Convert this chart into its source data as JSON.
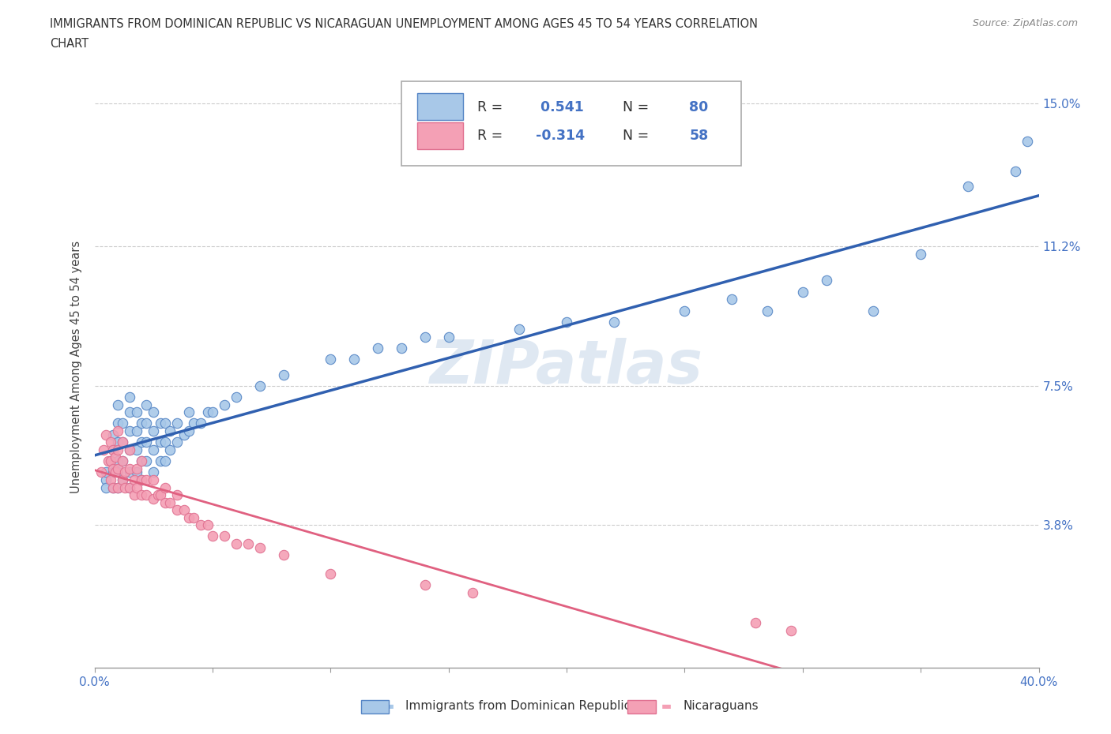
{
  "title_line1": "IMMIGRANTS FROM DOMINICAN REPUBLIC VS NICARAGUAN UNEMPLOYMENT AMONG AGES 45 TO 54 YEARS CORRELATION",
  "title_line2": "CHART",
  "source": "Source: ZipAtlas.com",
  "ylabel": "Unemployment Among Ages 45 to 54 years",
  "xlim": [
    0.0,
    0.4
  ],
  "ylim": [
    0.0,
    0.16
  ],
  "xticks": [
    0.0,
    0.05,
    0.1,
    0.15,
    0.2,
    0.25,
    0.3,
    0.35,
    0.4
  ],
  "xticklabels": [
    "0.0%",
    "",
    "",
    "",
    "",
    "",
    "",
    "",
    "40.0%"
  ],
  "ytick_gridlines": [
    0.038,
    0.075,
    0.112,
    0.15
  ],
  "yticklabels_right": [
    "3.8%",
    "7.5%",
    "11.2%",
    "15.0%"
  ],
  "grid_color": "#cccccc",
  "background_color": "#ffffff",
  "blue_fill": "#a8c8e8",
  "pink_fill": "#f4a0b5",
  "blue_edge": "#5585c5",
  "pink_edge": "#e07090",
  "blue_line_color": "#3060b0",
  "pink_line_color": "#e06080",
  "axis_label_color": "#4472c4",
  "R_blue": 0.541,
  "N_blue": 80,
  "R_pink": -0.314,
  "N_pink": 58,
  "watermark": "ZIPatlas",
  "legend_label_blue": "Immigrants from Dominican Republic",
  "legend_label_pink": "Nicaraguans",
  "blue_points": [
    [
      0.005,
      0.05
    ],
    [
      0.005,
      0.052
    ],
    [
      0.005,
      0.048
    ],
    [
      0.007,
      0.055
    ],
    [
      0.008,
      0.048
    ],
    [
      0.008,
      0.052
    ],
    [
      0.008,
      0.058
    ],
    [
      0.008,
      0.062
    ],
    [
      0.01,
      0.048
    ],
    [
      0.01,
      0.052
    ],
    [
      0.01,
      0.055
    ],
    [
      0.01,
      0.06
    ],
    [
      0.01,
      0.065
    ],
    [
      0.01,
      0.07
    ],
    [
      0.012,
      0.05
    ],
    [
      0.012,
      0.055
    ],
    [
      0.012,
      0.06
    ],
    [
      0.012,
      0.065
    ],
    [
      0.015,
      0.048
    ],
    [
      0.015,
      0.052
    ],
    [
      0.015,
      0.058
    ],
    [
      0.015,
      0.063
    ],
    [
      0.015,
      0.068
    ],
    [
      0.015,
      0.072
    ],
    [
      0.018,
      0.052
    ],
    [
      0.018,
      0.058
    ],
    [
      0.018,
      0.063
    ],
    [
      0.018,
      0.068
    ],
    [
      0.02,
      0.05
    ],
    [
      0.02,
      0.055
    ],
    [
      0.02,
      0.06
    ],
    [
      0.02,
      0.065
    ],
    [
      0.022,
      0.055
    ],
    [
      0.022,
      0.06
    ],
    [
      0.022,
      0.065
    ],
    [
      0.022,
      0.07
    ],
    [
      0.025,
      0.052
    ],
    [
      0.025,
      0.058
    ],
    [
      0.025,
      0.063
    ],
    [
      0.025,
      0.068
    ],
    [
      0.028,
      0.055
    ],
    [
      0.028,
      0.06
    ],
    [
      0.028,
      0.065
    ],
    [
      0.03,
      0.055
    ],
    [
      0.03,
      0.06
    ],
    [
      0.03,
      0.065
    ],
    [
      0.032,
      0.058
    ],
    [
      0.032,
      0.063
    ],
    [
      0.035,
      0.06
    ],
    [
      0.035,
      0.065
    ],
    [
      0.038,
      0.062
    ],
    [
      0.04,
      0.063
    ],
    [
      0.04,
      0.068
    ],
    [
      0.042,
      0.065
    ],
    [
      0.045,
      0.065
    ],
    [
      0.048,
      0.068
    ],
    [
      0.05,
      0.068
    ],
    [
      0.055,
      0.07
    ],
    [
      0.06,
      0.072
    ],
    [
      0.07,
      0.075
    ],
    [
      0.08,
      0.078
    ],
    [
      0.1,
      0.082
    ],
    [
      0.11,
      0.082
    ],
    [
      0.12,
      0.085
    ],
    [
      0.13,
      0.085
    ],
    [
      0.14,
      0.088
    ],
    [
      0.15,
      0.088
    ],
    [
      0.18,
      0.09
    ],
    [
      0.2,
      0.092
    ],
    [
      0.22,
      0.092
    ],
    [
      0.25,
      0.095
    ],
    [
      0.27,
      0.098
    ],
    [
      0.285,
      0.095
    ],
    [
      0.3,
      0.1
    ],
    [
      0.31,
      0.103
    ],
    [
      0.33,
      0.095
    ],
    [
      0.35,
      0.11
    ],
    [
      0.37,
      0.128
    ],
    [
      0.39,
      0.132
    ],
    [
      0.395,
      0.14
    ]
  ],
  "pink_points": [
    [
      0.003,
      0.052
    ],
    [
      0.004,
      0.058
    ],
    [
      0.005,
      0.062
    ],
    [
      0.006,
      0.055
    ],
    [
      0.007,
      0.05
    ],
    [
      0.007,
      0.055
    ],
    [
      0.007,
      0.06
    ],
    [
      0.008,
      0.048
    ],
    [
      0.008,
      0.053
    ],
    [
      0.008,
      0.058
    ],
    [
      0.009,
      0.052
    ],
    [
      0.009,
      0.056
    ],
    [
      0.01,
      0.048
    ],
    [
      0.01,
      0.053
    ],
    [
      0.01,
      0.058
    ],
    [
      0.01,
      0.063
    ],
    [
      0.012,
      0.05
    ],
    [
      0.012,
      0.055
    ],
    [
      0.012,
      0.06
    ],
    [
      0.013,
      0.048
    ],
    [
      0.013,
      0.052
    ],
    [
      0.015,
      0.048
    ],
    [
      0.015,
      0.053
    ],
    [
      0.015,
      0.058
    ],
    [
      0.017,
      0.046
    ],
    [
      0.017,
      0.05
    ],
    [
      0.018,
      0.048
    ],
    [
      0.018,
      0.053
    ],
    [
      0.02,
      0.046
    ],
    [
      0.02,
      0.05
    ],
    [
      0.02,
      0.055
    ],
    [
      0.022,
      0.046
    ],
    [
      0.022,
      0.05
    ],
    [
      0.025,
      0.045
    ],
    [
      0.025,
      0.05
    ],
    [
      0.027,
      0.046
    ],
    [
      0.028,
      0.046
    ],
    [
      0.03,
      0.044
    ],
    [
      0.03,
      0.048
    ],
    [
      0.032,
      0.044
    ],
    [
      0.035,
      0.042
    ],
    [
      0.035,
      0.046
    ],
    [
      0.038,
      0.042
    ],
    [
      0.04,
      0.04
    ],
    [
      0.042,
      0.04
    ],
    [
      0.045,
      0.038
    ],
    [
      0.048,
      0.038
    ],
    [
      0.05,
      0.035
    ],
    [
      0.055,
      0.035
    ],
    [
      0.06,
      0.033
    ],
    [
      0.065,
      0.033
    ],
    [
      0.07,
      0.032
    ],
    [
      0.08,
      0.03
    ],
    [
      0.1,
      0.025
    ],
    [
      0.14,
      0.022
    ],
    [
      0.16,
      0.02
    ],
    [
      0.28,
      0.012
    ],
    [
      0.295,
      0.01
    ]
  ]
}
